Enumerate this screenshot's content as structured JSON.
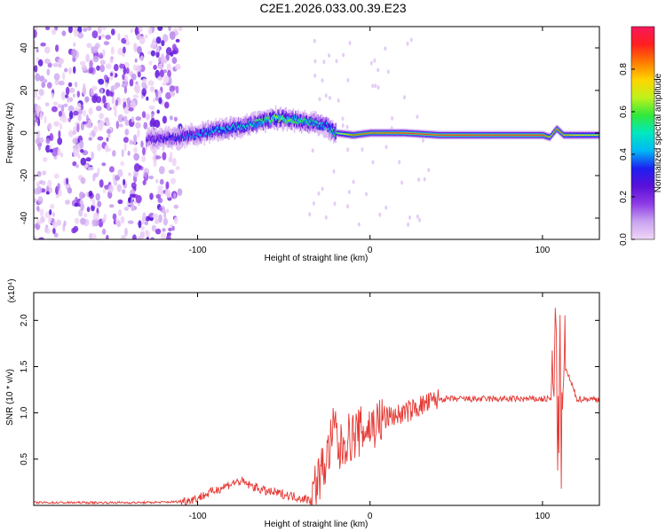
{
  "figure_title": "C2E1.2026.033.00.39.E23",
  "colors": {
    "trace": "#e53a35",
    "axes": "#000000",
    "background": "#ffffff",
    "colormap_stops": [
      "#f0d6f6",
      "#c9a4f0",
      "#8f3ce6",
      "#5a10d8",
      "#1d1ff0",
      "#00b8f5",
      "#00e8c0",
      "#31e83a",
      "#bff21c",
      "#ffd400",
      "#ff7a00",
      "#ff1f1f",
      "#f7195d"
    ]
  },
  "chart_data": [
    {
      "type": "heatmap",
      "id": "spectrogram",
      "xlabel": "Height of straight line (km)",
      "ylabel": "Frequency (Hz)",
      "xlim": [
        -195,
        133
      ],
      "ylim": [
        -50,
        50
      ],
      "x_ticks": [
        -100,
        0,
        100
      ],
      "x_tick_labels": [
        "-100",
        "0",
        "100"
      ],
      "y_ticks": [
        -40,
        -20,
        0,
        20,
        40
      ],
      "y_tick_labels": [
        "-40",
        "-20",
        "0",
        "20",
        "40"
      ],
      "colorbar": {
        "label": "Normalized spectral amplitude",
        "range": [
          0,
          1
        ],
        "ticks": [
          0,
          0.2,
          0.4,
          0.6,
          0.8
        ],
        "tick_labels": [
          "0.0",
          "0.2",
          "0.4",
          "0.6",
          "0.8"
        ]
      },
      "noise_region_km": [
        -195,
        -110
      ],
      "ridge": {
        "x": [
          -130,
          -110,
          -90,
          -70,
          -55,
          -45,
          -35,
          -25,
          -20,
          -10,
          0,
          20,
          40,
          60,
          80,
          100,
          104,
          108,
          112,
          120,
          133
        ],
        "y": [
          -3,
          -2,
          1,
          4,
          7,
          6,
          5,
          3,
          0,
          -1,
          0,
          0,
          -1,
          -1,
          -1,
          -1,
          -2,
          2,
          -1,
          -1,
          -1
        ],
        "amplitude": [
          0.25,
          0.35,
          0.45,
          0.5,
          0.65,
          0.6,
          0.55,
          0.45,
          0.6,
          0.85,
          0.85,
          0.9,
          0.9,
          0.9,
          0.9,
          0.9,
          0.75,
          0.9,
          0.8,
          0.75,
          0.7
        ]
      }
    },
    {
      "type": "line",
      "id": "snr",
      "xlabel": "Height of straight line (km)",
      "ylabel": "SNR (10 * v/v)",
      "y_scale_label": "(x10⁴)",
      "xlim": [
        -195,
        133
      ],
      "ylim": [
        0,
        2.3
      ],
      "x_ticks": [
        -100,
        0,
        100
      ],
      "x_tick_labels": [
        "-100",
        "0",
        "100"
      ],
      "y_ticks": [
        0.5,
        1.0,
        1.5,
        2.0
      ],
      "y_tick_labels": [
        "0.5",
        "1.0",
        "1.5",
        "2.0"
      ],
      "series": [
        {
          "name": "SNR",
          "x": [
            -195,
            -160,
            -130,
            -110,
            -100,
            -90,
            -80,
            -75,
            -70,
            -60,
            -50,
            -40,
            -35,
            -32,
            -25,
            -22,
            -20,
            -18,
            -15,
            -10,
            -5,
            0,
            5,
            10,
            20,
            30,
            40,
            50,
            60,
            80,
            100,
            105,
            107,
            108,
            109,
            110,
            111,
            113,
            120,
            133
          ],
          "y": [
            0.03,
            0.03,
            0.03,
            0.04,
            0.08,
            0.16,
            0.24,
            0.26,
            0.22,
            0.15,
            0.12,
            0.08,
            0.06,
            0.2,
            0.5,
            0.75,
            0.85,
            0.55,
            0.7,
            0.75,
            0.8,
            0.85,
            0.9,
            0.95,
            1.0,
            1.08,
            1.15,
            1.15,
            1.15,
            1.15,
            1.15,
            1.15,
            1.4,
            2.2,
            0.4,
            1.7,
            0.6,
            1.5,
            1.15,
            1.15
          ]
        }
      ]
    }
  ]
}
